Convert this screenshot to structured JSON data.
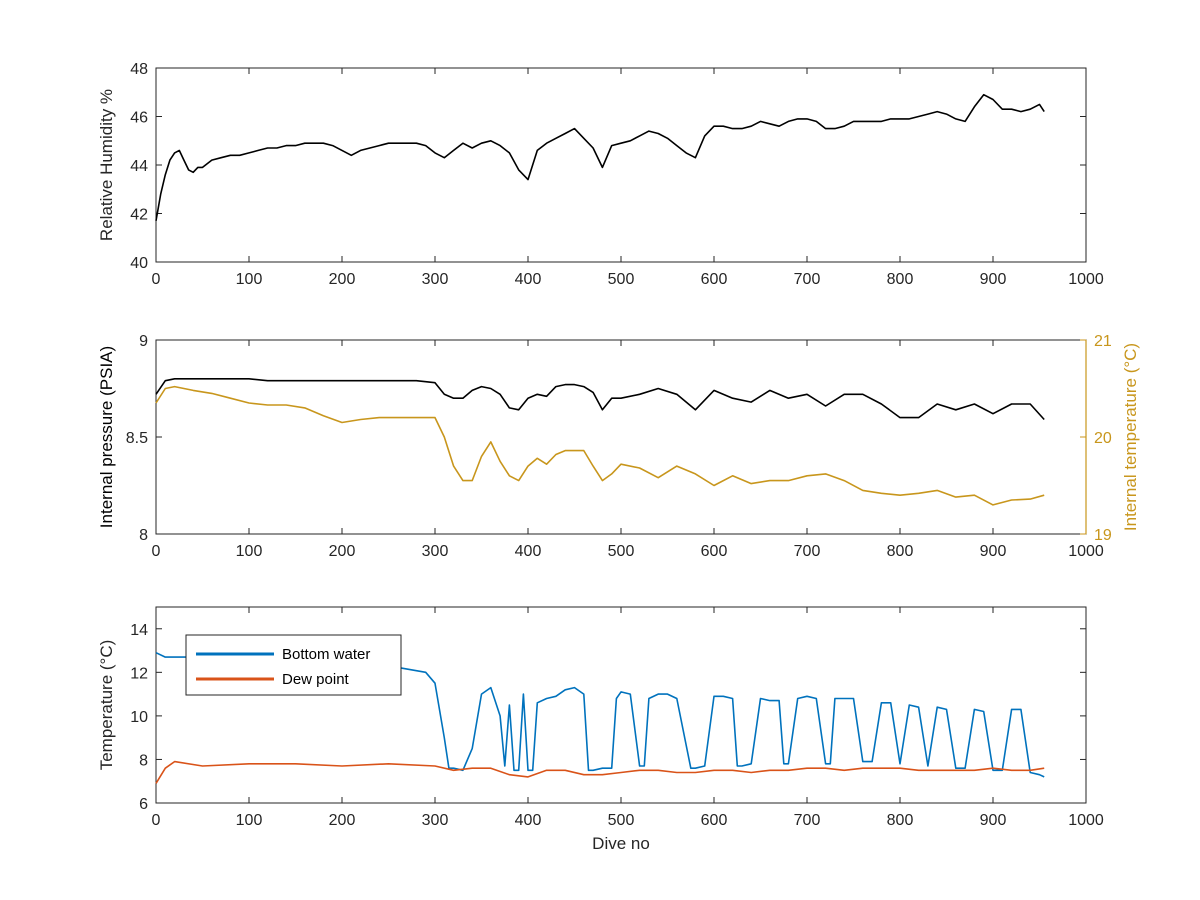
{
  "chart_data": [
    {
      "type": "line",
      "xlabel": "",
      "ylabel": "Relative Humidity %",
      "xlim": [
        0,
        1000
      ],
      "ylim": [
        40,
        48
      ],
      "xticks": [
        0,
        100,
        200,
        300,
        400,
        500,
        600,
        700,
        800,
        900,
        1000
      ],
      "yticks": [
        40,
        42,
        44,
        46,
        48
      ],
      "grid": false,
      "colors": {
        "rh": "#000000"
      },
      "series": [
        {
          "id": "rh",
          "x": [
            0,
            5,
            10,
            15,
            20,
            25,
            30,
            35,
            40,
            45,
            50,
            60,
            70,
            80,
            90,
            100,
            110,
            120,
            130,
            140,
            150,
            160,
            170,
            180,
            190,
            200,
            210,
            220,
            230,
            240,
            250,
            260,
            270,
            280,
            290,
            300,
            310,
            320,
            330,
            340,
            350,
            360,
            370,
            380,
            390,
            400,
            410,
            420,
            430,
            440,
            450,
            460,
            470,
            480,
            490,
            500,
            510,
            520,
            530,
            540,
            550,
            560,
            570,
            580,
            590,
            600,
            610,
            620,
            630,
            640,
            650,
            660,
            670,
            680,
            690,
            700,
            710,
            720,
            730,
            740,
            750,
            760,
            770,
            780,
            790,
            800,
            810,
            820,
            830,
            840,
            850,
            860,
            870,
            880,
            890,
            900,
            910,
            920,
            930,
            940,
            950,
            955
          ],
          "y": [
            41.7,
            42.8,
            43.6,
            44.2,
            44.5,
            44.6,
            44.2,
            43.8,
            43.7,
            43.9,
            43.9,
            44.2,
            44.3,
            44.4,
            44.4,
            44.5,
            44.6,
            44.7,
            44.7,
            44.8,
            44.8,
            44.9,
            44.9,
            44.9,
            44.8,
            44.6,
            44.4,
            44.6,
            44.7,
            44.8,
            44.9,
            44.9,
            44.9,
            44.9,
            44.8,
            44.5,
            44.3,
            44.6,
            44.9,
            44.7,
            44.9,
            45.0,
            44.8,
            44.5,
            43.8,
            43.4,
            44.6,
            44.9,
            45.1,
            45.3,
            45.5,
            45.1,
            44.7,
            43.9,
            44.8,
            44.9,
            45.0,
            45.2,
            45.4,
            45.3,
            45.1,
            44.8,
            44.5,
            44.3,
            45.2,
            45.6,
            45.6,
            45.5,
            45.5,
            45.6,
            45.8,
            45.7,
            45.6,
            45.8,
            45.9,
            45.9,
            45.8,
            45.5,
            45.5,
            45.6,
            45.8,
            45.8,
            45.8,
            45.8,
            45.9,
            45.9,
            45.9,
            46.0,
            46.1,
            46.2,
            46.1,
            45.9,
            45.8,
            46.4,
            46.9,
            46.7,
            46.3,
            46.3,
            46.2,
            46.3,
            46.5,
            46.2
          ]
        }
      ]
    },
    {
      "type": "line",
      "xlabel": "",
      "ylabel": "Internal pressure (PSIA)",
      "y2label": "Internal temperature (°C)",
      "xlim": [
        0,
        1000
      ],
      "ylim": [
        8,
        9
      ],
      "y2lim": [
        19,
        21
      ],
      "xticks": [
        0,
        100,
        200,
        300,
        400,
        500,
        600,
        700,
        800,
        900,
        1000
      ],
      "yticks": [
        8,
        8.5,
        9
      ],
      "y2ticks": [
        19,
        20,
        21
      ],
      "grid": false,
      "colors": {
        "pressure": "#000000",
        "temperature": "#C8961C"
      },
      "series": [
        {
          "id": "pressure",
          "axis": "left",
          "x": [
            0,
            10,
            20,
            40,
            60,
            80,
            100,
            120,
            140,
            160,
            180,
            200,
            220,
            240,
            260,
            280,
            300,
            310,
            320,
            330,
            340,
            350,
            360,
            370,
            380,
            390,
            400,
            410,
            420,
            430,
            440,
            450,
            460,
            470,
            480,
            490,
            500,
            520,
            540,
            560,
            580,
            600,
            620,
            640,
            660,
            680,
            700,
            720,
            740,
            760,
            780,
            800,
            820,
            840,
            860,
            880,
            900,
            920,
            940,
            955
          ],
          "y": [
            8.72,
            8.79,
            8.8,
            8.8,
            8.8,
            8.8,
            8.8,
            8.79,
            8.79,
            8.79,
            8.79,
            8.79,
            8.79,
            8.79,
            8.79,
            8.79,
            8.78,
            8.72,
            8.7,
            8.7,
            8.74,
            8.76,
            8.75,
            8.72,
            8.65,
            8.64,
            8.7,
            8.72,
            8.71,
            8.76,
            8.77,
            8.77,
            8.76,
            8.73,
            8.64,
            8.7,
            8.7,
            8.72,
            8.75,
            8.72,
            8.64,
            8.74,
            8.7,
            8.68,
            8.74,
            8.7,
            8.72,
            8.66,
            8.72,
            8.72,
            8.67,
            8.6,
            8.6,
            8.67,
            8.64,
            8.67,
            8.62,
            8.67,
            8.67,
            8.59
          ]
        },
        {
          "id": "temperature",
          "axis": "right",
          "x": [
            0,
            10,
            20,
            40,
            60,
            80,
            100,
            120,
            140,
            160,
            180,
            200,
            220,
            240,
            260,
            280,
            300,
            310,
            320,
            330,
            340,
            350,
            360,
            370,
            380,
            390,
            400,
            410,
            420,
            430,
            440,
            450,
            460,
            470,
            480,
            490,
            500,
            520,
            540,
            560,
            580,
            600,
            620,
            640,
            660,
            680,
            700,
            720,
            740,
            760,
            780,
            800,
            820,
            840,
            860,
            880,
            900,
            920,
            940,
            955
          ],
          "y": [
            20.35,
            20.5,
            20.52,
            20.48,
            20.45,
            20.4,
            20.35,
            20.33,
            20.33,
            20.3,
            20.22,
            20.15,
            20.18,
            20.2,
            20.2,
            20.2,
            20.2,
            20.0,
            19.7,
            19.55,
            19.55,
            19.8,
            19.95,
            19.75,
            19.6,
            19.55,
            19.7,
            19.78,
            19.72,
            19.82,
            19.86,
            19.86,
            19.86,
            19.7,
            19.55,
            19.62,
            19.72,
            19.68,
            19.58,
            19.7,
            19.62,
            19.5,
            19.6,
            19.52,
            19.55,
            19.55,
            19.6,
            19.62,
            19.55,
            19.45,
            19.42,
            19.4,
            19.42,
            19.45,
            19.38,
            19.4,
            19.3,
            19.35,
            19.36,
            19.4
          ]
        }
      ]
    },
    {
      "type": "line",
      "xlabel": "Dive no",
      "ylabel": "Temperature (°C)",
      "xlim": [
        0,
        1000
      ],
      "ylim": [
        6,
        15
      ],
      "xticks": [
        0,
        100,
        200,
        300,
        400,
        500,
        600,
        700,
        800,
        900,
        1000
      ],
      "yticks": [
        6,
        8,
        10,
        12,
        14
      ],
      "grid": false,
      "legend": "top-left",
      "colors": {
        "bottom": "#0072BD",
        "dew": "#D95319"
      },
      "series": [
        {
          "id": "bottom",
          "name": "Bottom water",
          "x": [
            0,
            10,
            20,
            50,
            100,
            150,
            200,
            250,
            290,
            300,
            310,
            315,
            320,
            330,
            340,
            350,
            360,
            370,
            375,
            380,
            385,
            390,
            395,
            400,
            405,
            410,
            420,
            430,
            440,
            450,
            460,
            465,
            470,
            480,
            490,
            495,
            500,
            510,
            520,
            525,
            530,
            540,
            550,
            560,
            575,
            580,
            590,
            600,
            610,
            620,
            625,
            630,
            640,
            650,
            660,
            670,
            675,
            680,
            690,
            700,
            710,
            720,
            725,
            730,
            740,
            750,
            760,
            770,
            780,
            790,
            800,
            810,
            820,
            830,
            840,
            850,
            860,
            870,
            880,
            890,
            900,
            910,
            920,
            930,
            940,
            950,
            955
          ],
          "y": [
            12.9,
            12.7,
            12.7,
            12.7,
            12.6,
            12.5,
            12.4,
            12.3,
            12.0,
            11.5,
            9.0,
            7.6,
            7.6,
            7.5,
            8.5,
            11.0,
            11.3,
            10.0,
            7.7,
            10.5,
            7.5,
            7.5,
            11.0,
            7.5,
            7.5,
            10.6,
            10.8,
            10.9,
            11.2,
            11.3,
            11.0,
            7.5,
            7.5,
            7.6,
            7.6,
            10.8,
            11.1,
            11.0,
            7.7,
            7.7,
            10.8,
            11.0,
            11.0,
            10.8,
            7.6,
            7.6,
            7.7,
            10.9,
            10.9,
            10.8,
            7.7,
            7.7,
            7.8,
            10.8,
            10.7,
            10.7,
            7.8,
            7.8,
            10.8,
            10.9,
            10.8,
            7.8,
            7.8,
            10.8,
            10.8,
            10.8,
            7.9,
            7.9,
            10.6,
            10.6,
            7.8,
            10.5,
            10.4,
            7.7,
            10.4,
            10.3,
            7.6,
            7.6,
            10.3,
            10.2,
            7.5,
            7.5,
            10.3,
            10.3,
            7.4,
            7.3,
            7.2
          ]
        },
        {
          "id": "dew",
          "name": "Dew point",
          "x": [
            0,
            10,
            20,
            50,
            100,
            150,
            200,
            250,
            300,
            320,
            340,
            360,
            380,
            400,
            420,
            440,
            460,
            480,
            500,
            520,
            540,
            560,
            580,
            600,
            620,
            640,
            660,
            680,
            700,
            720,
            740,
            760,
            780,
            800,
            820,
            840,
            860,
            880,
            900,
            920,
            940,
            955
          ],
          "y": [
            6.9,
            7.6,
            7.9,
            7.7,
            7.8,
            7.8,
            7.7,
            7.8,
            7.7,
            7.5,
            7.6,
            7.6,
            7.3,
            7.2,
            7.5,
            7.5,
            7.3,
            7.3,
            7.4,
            7.5,
            7.5,
            7.4,
            7.4,
            7.5,
            7.5,
            7.4,
            7.5,
            7.5,
            7.6,
            7.6,
            7.5,
            7.6,
            7.6,
            7.6,
            7.5,
            7.5,
            7.5,
            7.5,
            7.6,
            7.5,
            7.5,
            7.6
          ]
        }
      ]
    }
  ]
}
